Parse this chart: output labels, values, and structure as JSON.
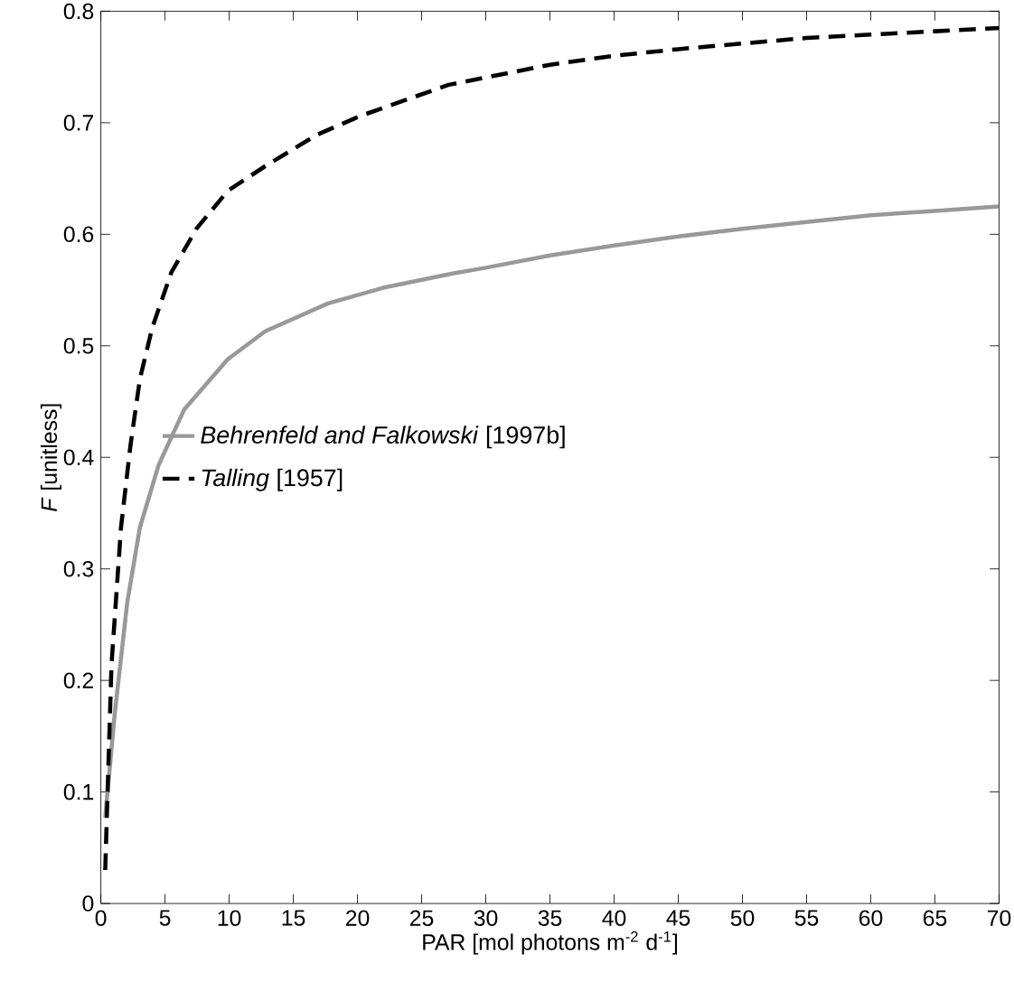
{
  "chart_data": {
    "type": "line",
    "xlabel": "PAR [mol photons m$^{-2}$ d$^{-1}$]",
    "ylabel": "*F* [unitless]",
    "xlim": [
      0,
      70
    ],
    "ylim": [
      0,
      0.8
    ],
    "xticks": [
      0,
      5,
      10,
      15,
      20,
      25,
      30,
      35,
      40,
      45,
      50,
      55,
      60,
      65,
      70
    ],
    "yticks": [
      0,
      0.1,
      0.2,
      0.3,
      0.4,
      0.5,
      0.6,
      0.7,
      0.8
    ],
    "legend": "left",
    "grid": false,
    "marker": "none",
    "series": [
      {
        "name": "*Behrenfeld and Falkowski* [1997b]",
        "color": "#999999",
        "line_style": "solid",
        "x": [
          0.34,
          1.08,
          2.06,
          3.04,
          4.5,
          6.5,
          9.9,
          12.8,
          17.7,
          22,
          27.5,
          30,
          35,
          40,
          45,
          50,
          55,
          60,
          65,
          70
        ],
        "values": [
          0.077,
          0.17,
          0.27,
          0.337,
          0.393,
          0.443,
          0.488,
          0.513,
          0.538,
          0.552,
          0.565,
          0.57,
          0.581,
          0.59,
          0.598,
          0.605,
          0.611,
          0.617,
          0.621,
          0.625
        ]
      },
      {
        "name": "*Talling* [1957]",
        "color": "#000000",
        "line_style": "dashed",
        "x": [
          0.34,
          0.83,
          1.57,
          2.3,
          3.04,
          4.0,
          5.5,
          7.45,
          9.9,
          12.8,
          16.8,
          20.2,
          27.1,
          35,
          40,
          45,
          50,
          55,
          60,
          65,
          70
        ],
        "values": [
          0.03,
          0.214,
          0.337,
          0.41,
          0.47,
          0.516,
          0.566,
          0.605,
          0.639,
          0.661,
          0.689,
          0.706,
          0.734,
          0.752,
          0.76,
          0.766,
          0.771,
          0.776,
          0.779,
          0.782,
          0.785
        ]
      }
    ]
  }
}
